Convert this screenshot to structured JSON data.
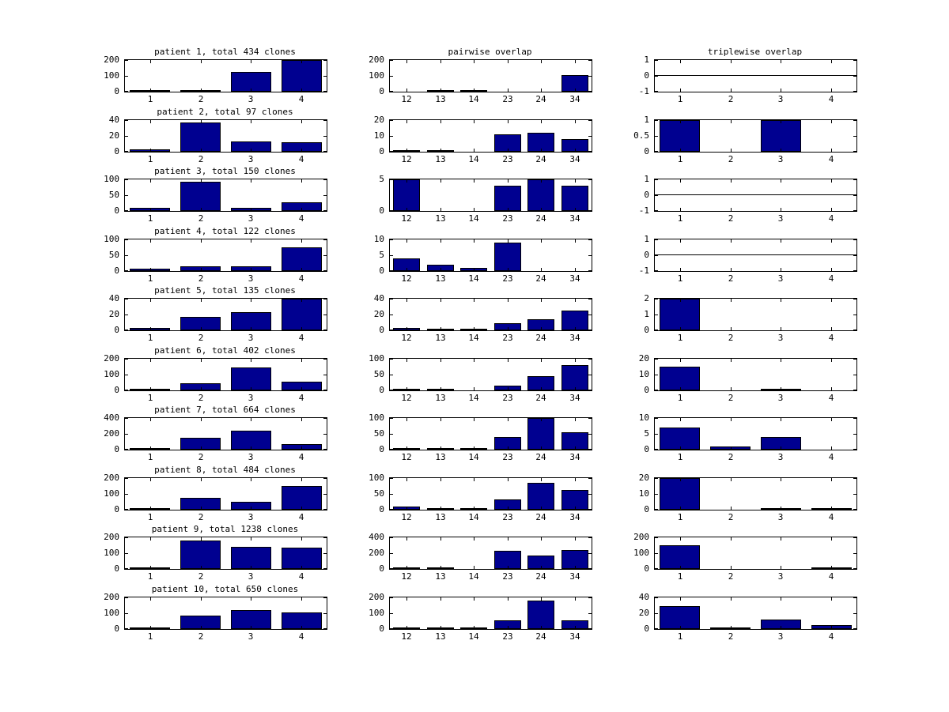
{
  "figure": {
    "background": "#ffffff",
    "bar_color": "#000090",
    "bar_edge_color": "#000000",
    "axis_color": "#000000",
    "column_titles": {
      "pairwise": "pairwise overlap",
      "triplewise": "triplewise overlap"
    }
  },
  "chart_data": {
    "type": "bar",
    "grid": "10 rows x 3 columns",
    "legend": "none",
    "gridlines": "off",
    "categories": {
      "single": [
        "1",
        "2",
        "3",
        "4"
      ],
      "pairwise": [
        "12",
        "13",
        "14",
        "23",
        "24",
        "34"
      ]
    },
    "rows": [
      {
        "patient": {
          "title": "patient 1, total 434 clones",
          "values": [
            3,
            1,
            125,
            200
          ],
          "ymin": 0,
          "ymax": 200,
          "yticks": [
            0,
            100,
            200
          ]
        },
        "pairwise": {
          "values": [
            0,
            5,
            5,
            0,
            0,
            105
          ],
          "ymin": 0,
          "ymax": 200,
          "yticks": [
            0,
            100,
            200
          ]
        },
        "triplewise": {
          "values": [
            0,
            0,
            0,
            0
          ],
          "ymin": -1,
          "ymax": 1,
          "yticks": [
            -1,
            0,
            1
          ]
        }
      },
      {
        "patient": {
          "title": "patient 2, total 97 clones",
          "values": [
            3,
            37,
            13,
            12
          ],
          "ymin": 0,
          "ymax": 40,
          "yticks": [
            0,
            20,
            40
          ]
        },
        "pairwise": {
          "values": [
            1,
            1,
            0,
            11,
            12,
            8
          ],
          "ymin": 0,
          "ymax": 20,
          "yticks": [
            0,
            10,
            20
          ]
        },
        "triplewise": {
          "values": [
            1,
            0,
            1,
            0
          ],
          "ymin": 0,
          "ymax": 1,
          "yticks": [
            0,
            0.5,
            1
          ]
        }
      },
      {
        "patient": {
          "title": "patient 3, total 150 clones",
          "values": [
            10,
            92,
            11,
            27
          ],
          "ymin": 0,
          "ymax": 100,
          "yticks": [
            0,
            50,
            100
          ]
        },
        "pairwise": {
          "values": [
            5,
            0,
            0,
            4,
            5,
            4
          ],
          "ymin": 0,
          "ymax": 5,
          "yticks": [
            0,
            5
          ]
        },
        "triplewise": {
          "values": [
            0,
            0,
            0,
            0
          ],
          "ymin": -1,
          "ymax": 1,
          "yticks": [
            -1,
            0,
            1
          ]
        }
      },
      {
        "patient": {
          "title": "patient 4, total 122 clones",
          "values": [
            8,
            14,
            14,
            75
          ],
          "ymin": 0,
          "ymax": 100,
          "yticks": [
            0,
            50,
            100
          ]
        },
        "pairwise": {
          "values": [
            4,
            2,
            1,
            9,
            0,
            0
          ],
          "ymin": 0,
          "ymax": 10,
          "yticks": [
            0,
            5,
            10
          ]
        },
        "triplewise": {
          "values": [
            0,
            0,
            0,
            0
          ],
          "ymin": -1,
          "ymax": 1,
          "yticks": [
            -1,
            0,
            1
          ]
        }
      },
      {
        "patient": {
          "title": "patient 5, total 135 clones",
          "values": [
            3,
            17,
            23,
            40
          ],
          "ymin": 0,
          "ymax": 40,
          "yticks": [
            0,
            20,
            40
          ]
        },
        "pairwise": {
          "values": [
            3,
            1,
            1,
            9,
            14,
            25
          ],
          "ymin": 0,
          "ymax": 40,
          "yticks": [
            0,
            20,
            40
          ]
        },
        "triplewise": {
          "values": [
            2,
            0,
            0,
            0
          ],
          "ymin": 0,
          "ymax": 2,
          "yticks": [
            0,
            1,
            2
          ]
        }
      },
      {
        "patient": {
          "title": "patient 6, total 402 clones",
          "values": [
            4,
            43,
            145,
            57
          ],
          "ymin": 0,
          "ymax": 200,
          "yticks": [
            0,
            100,
            200
          ]
        },
        "pairwise": {
          "values": [
            2,
            2,
            0,
            16,
            45,
            80
          ],
          "ymin": 0,
          "ymax": 100,
          "yticks": [
            0,
            50,
            100
          ]
        },
        "triplewise": {
          "values": [
            15,
            0,
            1,
            0
          ],
          "ymin": 0,
          "ymax": 20,
          "yticks": [
            0,
            10,
            20
          ]
        }
      },
      {
        "patient": {
          "title": "patient 7, total 664 clones",
          "values": [
            10,
            150,
            240,
            75
          ],
          "ymin": 0,
          "ymax": 400,
          "yticks": [
            0,
            200,
            400
          ]
        },
        "pairwise": {
          "values": [
            5,
            2,
            2,
            40,
            100,
            55
          ],
          "ymin": 0,
          "ymax": 100,
          "yticks": [
            0,
            50,
            100
          ]
        },
        "triplewise": {
          "values": [
            7,
            1,
            4,
            0
          ],
          "ymin": 0,
          "ymax": 10,
          "yticks": [
            0,
            5,
            10
          ]
        }
      },
      {
        "patient": {
          "title": "patient 8, total 484 clones",
          "values": [
            5,
            75,
            48,
            150
          ],
          "ymin": 0,
          "ymax": 200,
          "yticks": [
            0,
            100,
            200
          ]
        },
        "pairwise": {
          "values": [
            11,
            2,
            5,
            32,
            84,
            62
          ],
          "ymin": 0,
          "ymax": 100,
          "yticks": [
            0,
            50,
            100
          ]
        },
        "triplewise": {
          "values": [
            20,
            0,
            1,
            1
          ],
          "ymin": 0,
          "ymax": 20,
          "yticks": [
            0,
            10,
            20
          ]
        }
      },
      {
        "patient": {
          "title": "patient 9, total 1238 clones",
          "values": [
            5,
            180,
            140,
            135
          ],
          "ymin": 0,
          "ymax": 200,
          "yticks": [
            0,
            100,
            200
          ]
        },
        "pairwise": {
          "values": [
            10,
            12,
            0,
            230,
            170,
            245
          ],
          "ymin": 0,
          "ymax": 400,
          "yticks": [
            0,
            200,
            400
          ]
        },
        "triplewise": {
          "values": [
            148,
            0,
            0,
            5
          ],
          "ymin": 0,
          "ymax": 200,
          "yticks": [
            0,
            100,
            200
          ]
        }
      },
      {
        "patient": {
          "title": "patient 10, total 650 clones",
          "values": [
            4,
            85,
            120,
            105
          ],
          "ymin": 0,
          "ymax": 200,
          "yticks": [
            0,
            100,
            200
          ]
        },
        "pairwise": {
          "values": [
            5,
            5,
            5,
            55,
            180,
            55
          ],
          "ymin": 0,
          "ymax": 200,
          "yticks": [
            0,
            100,
            200
          ]
        },
        "triplewise": {
          "values": [
            29,
            2,
            12,
            5
          ],
          "ymin": 0,
          "ymax": 40,
          "yticks": [
            0,
            20,
            40
          ]
        }
      }
    ]
  }
}
